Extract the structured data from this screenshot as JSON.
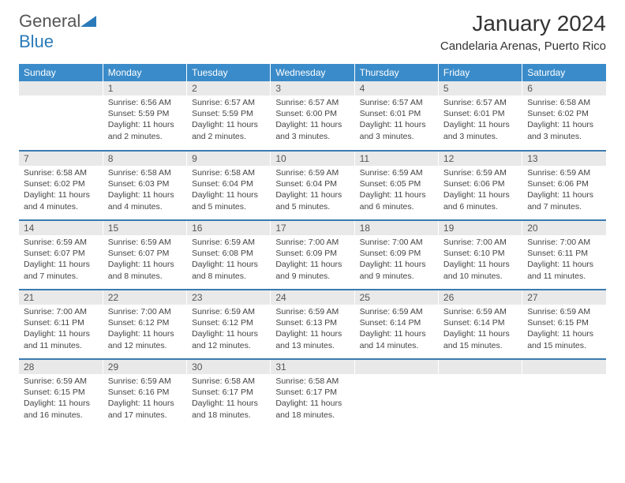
{
  "logo": {
    "general": "General",
    "blue": "Blue"
  },
  "title": "January 2024",
  "location": "Candelaria Arenas, Puerto Rico",
  "colors": {
    "header_bg": "#3a8bc9",
    "row_divider": "#3a7bb0",
    "daynum_bg": "#e9e9e9",
    "text": "#444444",
    "logo_gray": "#555555",
    "logo_blue": "#2a7ab9"
  },
  "weekdays": [
    "Sunday",
    "Monday",
    "Tuesday",
    "Wednesday",
    "Thursday",
    "Friday",
    "Saturday"
  ],
  "start_weekday": 1,
  "days": [
    {
      "n": 1,
      "sr": "6:56 AM",
      "ss": "5:59 PM",
      "dl": "11 hours and 2 minutes."
    },
    {
      "n": 2,
      "sr": "6:57 AM",
      "ss": "5:59 PM",
      "dl": "11 hours and 2 minutes."
    },
    {
      "n": 3,
      "sr": "6:57 AM",
      "ss": "6:00 PM",
      "dl": "11 hours and 3 minutes."
    },
    {
      "n": 4,
      "sr": "6:57 AM",
      "ss": "6:01 PM",
      "dl": "11 hours and 3 minutes."
    },
    {
      "n": 5,
      "sr": "6:57 AM",
      "ss": "6:01 PM",
      "dl": "11 hours and 3 minutes."
    },
    {
      "n": 6,
      "sr": "6:58 AM",
      "ss": "6:02 PM",
      "dl": "11 hours and 3 minutes."
    },
    {
      "n": 7,
      "sr": "6:58 AM",
      "ss": "6:02 PM",
      "dl": "11 hours and 4 minutes."
    },
    {
      "n": 8,
      "sr": "6:58 AM",
      "ss": "6:03 PM",
      "dl": "11 hours and 4 minutes."
    },
    {
      "n": 9,
      "sr": "6:58 AM",
      "ss": "6:04 PM",
      "dl": "11 hours and 5 minutes."
    },
    {
      "n": 10,
      "sr": "6:59 AM",
      "ss": "6:04 PM",
      "dl": "11 hours and 5 minutes."
    },
    {
      "n": 11,
      "sr": "6:59 AM",
      "ss": "6:05 PM",
      "dl": "11 hours and 6 minutes."
    },
    {
      "n": 12,
      "sr": "6:59 AM",
      "ss": "6:06 PM",
      "dl": "11 hours and 6 minutes."
    },
    {
      "n": 13,
      "sr": "6:59 AM",
      "ss": "6:06 PM",
      "dl": "11 hours and 7 minutes."
    },
    {
      "n": 14,
      "sr": "6:59 AM",
      "ss": "6:07 PM",
      "dl": "11 hours and 7 minutes."
    },
    {
      "n": 15,
      "sr": "6:59 AM",
      "ss": "6:07 PM",
      "dl": "11 hours and 8 minutes."
    },
    {
      "n": 16,
      "sr": "6:59 AM",
      "ss": "6:08 PM",
      "dl": "11 hours and 8 minutes."
    },
    {
      "n": 17,
      "sr": "7:00 AM",
      "ss": "6:09 PM",
      "dl": "11 hours and 9 minutes."
    },
    {
      "n": 18,
      "sr": "7:00 AM",
      "ss": "6:09 PM",
      "dl": "11 hours and 9 minutes."
    },
    {
      "n": 19,
      "sr": "7:00 AM",
      "ss": "6:10 PM",
      "dl": "11 hours and 10 minutes."
    },
    {
      "n": 20,
      "sr": "7:00 AM",
      "ss": "6:11 PM",
      "dl": "11 hours and 11 minutes."
    },
    {
      "n": 21,
      "sr": "7:00 AM",
      "ss": "6:11 PM",
      "dl": "11 hours and 11 minutes."
    },
    {
      "n": 22,
      "sr": "7:00 AM",
      "ss": "6:12 PM",
      "dl": "11 hours and 12 minutes."
    },
    {
      "n": 23,
      "sr": "6:59 AM",
      "ss": "6:12 PM",
      "dl": "11 hours and 12 minutes."
    },
    {
      "n": 24,
      "sr": "6:59 AM",
      "ss": "6:13 PM",
      "dl": "11 hours and 13 minutes."
    },
    {
      "n": 25,
      "sr": "6:59 AM",
      "ss": "6:14 PM",
      "dl": "11 hours and 14 minutes."
    },
    {
      "n": 26,
      "sr": "6:59 AM",
      "ss": "6:14 PM",
      "dl": "11 hours and 15 minutes."
    },
    {
      "n": 27,
      "sr": "6:59 AM",
      "ss": "6:15 PM",
      "dl": "11 hours and 15 minutes."
    },
    {
      "n": 28,
      "sr": "6:59 AM",
      "ss": "6:15 PM",
      "dl": "11 hours and 16 minutes."
    },
    {
      "n": 29,
      "sr": "6:59 AM",
      "ss": "6:16 PM",
      "dl": "11 hours and 17 minutes."
    },
    {
      "n": 30,
      "sr": "6:58 AM",
      "ss": "6:17 PM",
      "dl": "11 hours and 18 minutes."
    },
    {
      "n": 31,
      "sr": "6:58 AM",
      "ss": "6:17 PM",
      "dl": "11 hours and 18 minutes."
    }
  ],
  "labels": {
    "sunrise": "Sunrise:",
    "sunset": "Sunset:",
    "daylight": "Daylight:"
  }
}
